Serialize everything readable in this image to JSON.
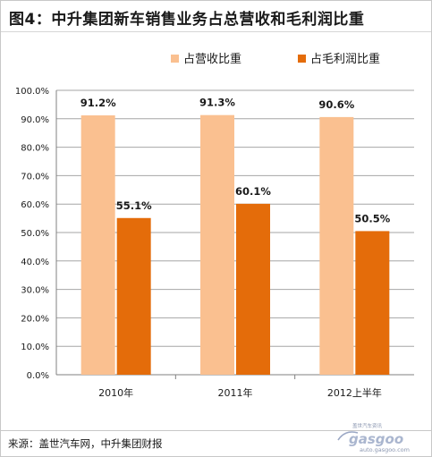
{
  "title": "图4：中升集团新车销售业务占总营收和毛利润比重",
  "source": "来源：盖世汽车网，中升集团财报",
  "watermark": {
    "logo_text": "gasgoo",
    "small_text": "盖世汽车资讯",
    "url": "auto.gasgoo.com"
  },
  "chart_data": {
    "type": "bar",
    "categories": [
      "2010年",
      "2011年",
      "2012上半年"
    ],
    "series": [
      {
        "name": "占营收比重",
        "values": [
          91.2,
          91.3,
          90.6
        ],
        "labels": [
          "91.2%",
          "91.3%",
          "90.6%"
        ],
        "color": "#fac090"
      },
      {
        "name": "占毛利润比重",
        "values": [
          55.1,
          60.1,
          50.5
        ],
        "labels": [
          "55.1%",
          "60.1%",
          "50.5%"
        ],
        "color": "#e46c0a"
      }
    ],
    "ylim": [
      0,
      100
    ],
    "yticks": [
      "0.0%",
      "10.0%",
      "20.0%",
      "30.0%",
      "40.0%",
      "50.0%",
      "60.0%",
      "70.0%",
      "80.0%",
      "90.0%",
      "100.0%"
    ],
    "legend_position": "top-right",
    "grid": true
  }
}
